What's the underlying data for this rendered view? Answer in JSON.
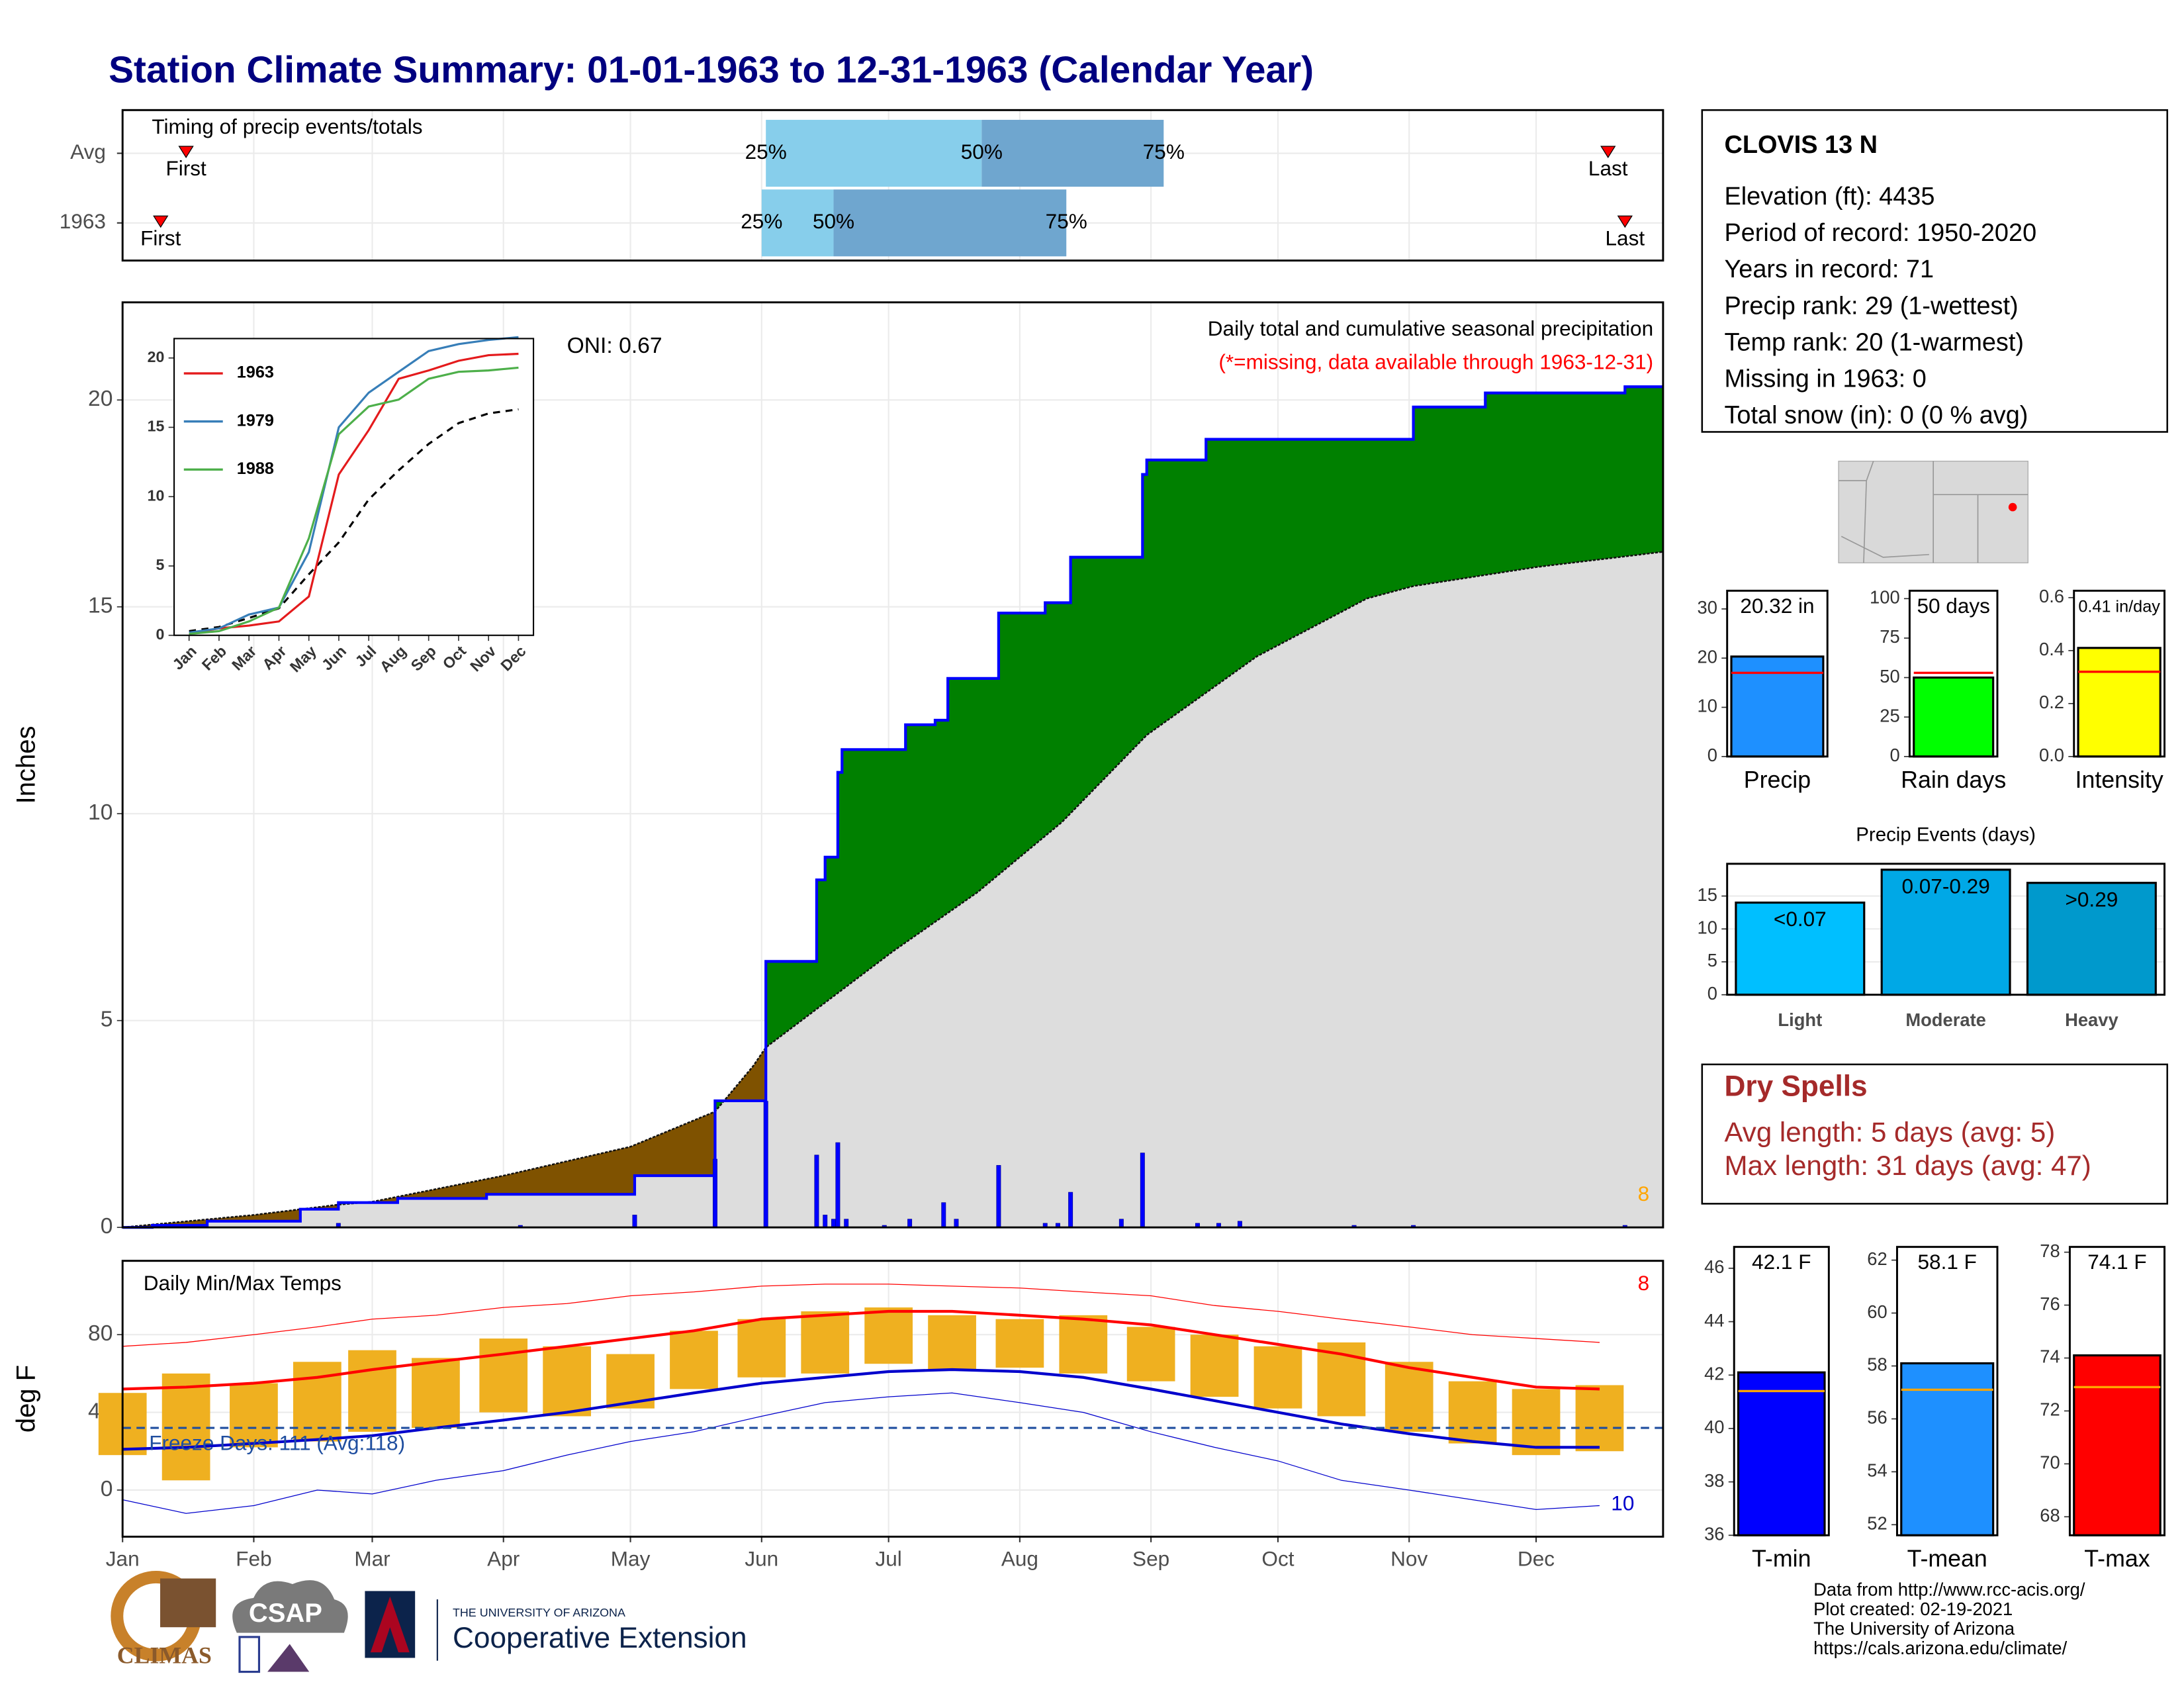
{
  "title": "Station Climate Summary: 01-01-1963 to 12-31-1963 (Calendar Year)",
  "chart_data": [
    {
      "type": "timing",
      "title": "Timing of precip events/totals",
      "categories": [
        "Avg",
        "1963"
      ],
      "xlim": [
        1,
        365
      ],
      "first": [
        16,
        10
      ],
      "q25": [
        153,
        152
      ],
      "q50": [
        204,
        169
      ],
      "q75": [
        247,
        224
      ],
      "last": [
        352,
        356
      ],
      "percentile_labels": [
        "25%",
        "50%",
        "75%"
      ],
      "first_label": "First",
      "last_label": "Last",
      "colors": [
        "#87ceeb",
        "#6fa6cf"
      ],
      "marker_color": "#ff0000"
    },
    {
      "type": "area",
      "title": "Daily total and cumulative seasonal precipitation",
      "subtitle": "(*=missing, data available through 1963-12-31)",
      "ylabel": "Inches",
      "oni_label": "ONI: 0.67",
      "corner_label": "8",
      "xlim": [
        1,
        365
      ],
      "ylim": [
        0,
        22.36
      ],
      "yticks": [
        0,
        5,
        10,
        15,
        20
      ],
      "grid": true,
      "cumulative": {
        "x": [
          1,
          8,
          21,
          43,
          52,
          66,
          87,
          122,
          141,
          153,
          165,
          167,
          170,
          171,
          186,
          193,
          196,
          208,
          219,
          225,
          242,
          243,
          257,
          306,
          323,
          356,
          365
        ],
        "values": [
          0,
          0.05,
          0.15,
          0.44,
          0.6,
          0.7,
          0.8,
          1.25,
          3.06,
          6.43,
          8.4,
          8.95,
          11.0,
          11.55,
          12.15,
          12.26,
          13.27,
          14.85,
          15.1,
          16.2,
          18.2,
          18.55,
          19.05,
          19.83,
          20.17,
          20.32,
          20.32
        ],
        "color": "#0000ff",
        "above_color": "#008000",
        "below_color": "#7f5200"
      },
      "average": {
        "x": [
          1,
          32,
          52,
          60,
          91,
          121,
          141,
          150,
          153,
          183,
          203,
          223,
          243,
          269,
          295,
          306,
          335,
          365
        ],
        "values": [
          0,
          0.3,
          0.55,
          0.62,
          1.25,
          1.95,
          2.8,
          3.9,
          4.35,
          6.67,
          8.1,
          9.8,
          11.9,
          13.8,
          15.2,
          15.5,
          15.96,
          16.33
        ],
        "color": "#dddddd"
      },
      "daily": {
        "x": [
          8,
          52,
          95,
          122,
          141,
          153,
          165,
          167,
          169,
          170,
          172,
          181,
          187,
          195,
          198,
          208,
          219,
          222,
          225,
          237,
          242,
          255,
          260,
          265,
          292,
          306,
          356
        ],
        "values": [
          0.02,
          0.1,
          0.05,
          0.3,
          1.65,
          3.05,
          1.75,
          0.3,
          0.2,
          2.05,
          0.2,
          0.05,
          0.2,
          0.6,
          0.2,
          1.5,
          0.1,
          0.1,
          0.85,
          0.2,
          1.8,
          0.1,
          0.1,
          0.15,
          0.05,
          0.05,
          0.05
        ],
        "color": "#0000ff"
      }
    },
    {
      "type": "line",
      "categories": [
        "Jan",
        "Feb",
        "Mar",
        "Apr",
        "May",
        "Jun",
        "Jul",
        "Aug",
        "Sep",
        "Oct",
        "Nov",
        "Dec"
      ],
      "ylim": [
        0,
        21.4
      ],
      "yticks": [
        0,
        5,
        10,
        15,
        20
      ],
      "series": [
        {
          "name": "1963",
          "color": "#e41a1c",
          "values": [
            0.1,
            0.5,
            0.7,
            1.0,
            2.8,
            11.6,
            14.8,
            18.5,
            19.1,
            19.8,
            20.2,
            20.3
          ]
        },
        {
          "name": "1979",
          "color": "#377eb8",
          "values": [
            0.2,
            0.5,
            1.5,
            2.0,
            6.0,
            15.0,
            17.5,
            19.0,
            20.5,
            21.0,
            21.3,
            21.5
          ]
        },
        {
          "name": "1988",
          "color": "#4daf4a",
          "values": [
            0.1,
            0.3,
            1.0,
            2.0,
            7.0,
            14.5,
            16.5,
            17.0,
            18.5,
            19.0,
            19.1,
            19.3
          ]
        }
      ],
      "average": {
        "values": [
          0.3,
          0.6,
          1.25,
          1.95,
          4.4,
          6.7,
          9.8,
          11.9,
          13.8,
          15.3,
          16.0,
          16.3
        ],
        "color": "#000000",
        "linestyle": "dashed"
      }
    },
    {
      "type": "temperature",
      "title": "Daily Min/Max Temps",
      "ylabel": "deg F",
      "freeze_label": "Freeze Days: 111 (Avg:118)",
      "freeze_threshold": 32,
      "record_high_label": "8",
      "record_low_label": "10",
      "xlim": [
        1,
        365
      ],
      "ylim": [
        -24,
        118
      ],
      "yticks": [
        0,
        40,
        80
      ],
      "grid": true,
      "xticks": [
        {
          "value": 1,
          "label": "Jan"
        },
        {
          "value": 32,
          "label": "Feb"
        },
        {
          "value": 60,
          "label": "Mar"
        },
        {
          "value": 91,
          "label": "Apr"
        },
        {
          "value": 121,
          "label": "May"
        },
        {
          "value": 152,
          "label": "Jun"
        },
        {
          "value": 182,
          "label": "Jul"
        },
        {
          "value": 213,
          "label": "Aug"
        },
        {
          "value": 244,
          "label": "Sep"
        },
        {
          "value": 274,
          "label": "Oct"
        },
        {
          "value": 305,
          "label": "Nov"
        },
        {
          "value": 335,
          "label": "Dec"
        }
      ],
      "x": [
        1,
        16,
        32,
        47,
        60,
        75,
        91,
        106,
        121,
        136,
        152,
        167,
        182,
        197,
        213,
        228,
        244,
        259,
        274,
        289,
        305,
        320,
        335,
        350
      ],
      "tmax": [
        50,
        60,
        55,
        66,
        72,
        68,
        78,
        74,
        70,
        82,
        88,
        92,
        94,
        90,
        88,
        90,
        84,
        80,
        74,
        76,
        66,
        56,
        52,
        54
      ],
      "tmin": [
        18,
        5,
        22,
        25,
        30,
        32,
        40,
        38,
        42,
        52,
        58,
        60,
        65,
        62,
        63,
        60,
        56,
        48,
        42,
        38,
        30,
        24,
        18,
        20
      ],
      "avg_max": [
        52,
        53,
        55,
        58,
        62,
        66,
        70,
        74,
        78,
        82,
        88,
        90,
        92,
        92,
        90,
        88,
        85,
        80,
        75,
        70,
        63,
        58,
        53,
        52
      ],
      "avg_min": [
        21,
        22,
        24,
        26,
        28,
        32,
        36,
        40,
        45,
        50,
        55,
        58,
        61,
        62,
        61,
        58,
        52,
        46,
        40,
        34,
        29,
        25,
        22,
        22
      ],
      "record_max": [
        74,
        76,
        80,
        84,
        88,
        90,
        94,
        96,
        100,
        102,
        105,
        106,
        106,
        105,
        104,
        102,
        100,
        95,
        92,
        88,
        84,
        80,
        78,
        76
      ],
      "record_min": [
        -5,
        -12,
        -8,
        0,
        -2,
        5,
        10,
        18,
        25,
        30,
        38,
        45,
        48,
        50,
        45,
        40,
        30,
        22,
        15,
        5,
        0,
        -5,
        -10,
        -8
      ],
      "bar_color": "#efb020",
      "max_color": "#ff0000",
      "min_color": "#0000cc",
      "freeze_color": "#1f4e9f"
    },
    {
      "type": "bar",
      "categories": [
        "Precip"
      ],
      "values": [
        20.32
      ],
      "value_labels": [
        "20.32 in"
      ],
      "reference": 17.0,
      "reference_color": "#ff0000",
      "color": "#1e90ff",
      "ylim": [
        0,
        33.7
      ],
      "yticks": [
        0,
        10,
        20,
        30
      ]
    },
    {
      "type": "bar",
      "categories": [
        "Rain days"
      ],
      "values": [
        50
      ],
      "value_labels": [
        "50 days"
      ],
      "reference": 53,
      "reference_color": "#ff0000",
      "color": "#00ff00",
      "ylim": [
        0,
        105
      ],
      "yticks": [
        0,
        25,
        50,
        75,
        100
      ]
    },
    {
      "type": "bar",
      "categories": [
        "Intensity"
      ],
      "values": [
        0.41
      ],
      "value_labels": [
        "0.41 in/day"
      ],
      "reference": 0.32,
      "reference_color": "#ff0000",
      "color": "#ffff00",
      "ylim": [
        0,
        0.626
      ],
      "yticks": [
        {
          "value": 0,
          "label": "0.0"
        },
        0.2,
        0.4,
        0.6
      ]
    },
    {
      "type": "bar",
      "title": "Precip Events (days)",
      "categories": [
        "Light",
        "Moderate",
        "Heavy"
      ],
      "values": [
        14,
        19,
        17
      ],
      "bin_labels": [
        "<0.07",
        "0.07-0.29",
        ">0.29"
      ],
      "colors": [
        "#00bfff",
        "#00a8e6",
        "#0099cc"
      ],
      "ylim": [
        0,
        19.9
      ],
      "yticks": [
        0,
        5,
        10,
        15
      ],
      "grid": true
    },
    {
      "type": "bar",
      "categories": [
        "T-min"
      ],
      "values": [
        42.1
      ],
      "value_labels": [
        "42.1 F"
      ],
      "reference": 41.4,
      "reference_color": "#ffa500",
      "color": "#0000ff",
      "ylim": [
        36,
        46.8
      ],
      "yticks": [
        36,
        38,
        40,
        42,
        44,
        46
      ]
    },
    {
      "type": "bar",
      "categories": [
        "T-mean"
      ],
      "values": [
        58.1
      ],
      "value_labels": [
        "58.1 F"
      ],
      "reference": 57.1,
      "reference_color": "#ffa500",
      "color": "#1e90ff",
      "ylim": [
        51.6,
        62.5
      ],
      "yticks": [
        52,
        54,
        56,
        58,
        60,
        62
      ]
    },
    {
      "type": "bar",
      "categories": [
        "T-max"
      ],
      "values": [
        74.1
      ],
      "value_labels": [
        "74.1 F"
      ],
      "reference": 72.9,
      "reference_color": "#ffa500",
      "color": "#ff0000",
      "ylim": [
        67.3,
        78.2
      ],
      "yticks": [
        68,
        70,
        72,
        74,
        76,
        78
      ]
    }
  ],
  "station": {
    "name": "CLOVIS 13 N",
    "lines": [
      "Elevation (ft): 4435",
      "Period of record: 1950-2020",
      "Years in record: 71",
      "Precip rank: 29 (1-wettest)",
      "Temp rank: 20 (1-warmest)",
      "Missing in 1963: 0",
      "Total snow (in): 0 (0 % avg)"
    ]
  },
  "dry_spells": {
    "title": "Dry Spells",
    "lines": [
      "Avg length: 5 days (avg: 5)",
      "Max length: 31 days (avg: 47)"
    ]
  },
  "footer": {
    "lines": [
      "Data from http://www.rcc-acis.org/",
      "Plot created: 02-19-2021",
      "The University of Arizona",
      "https://cals.arizona.edu/climate/"
    ]
  },
  "logos": {
    "climas": "CLIMAS",
    "csap": "CSAP",
    "university": "THE UNIVERSITY OF ARIZONA",
    "extension": "Cooperative Extension"
  }
}
